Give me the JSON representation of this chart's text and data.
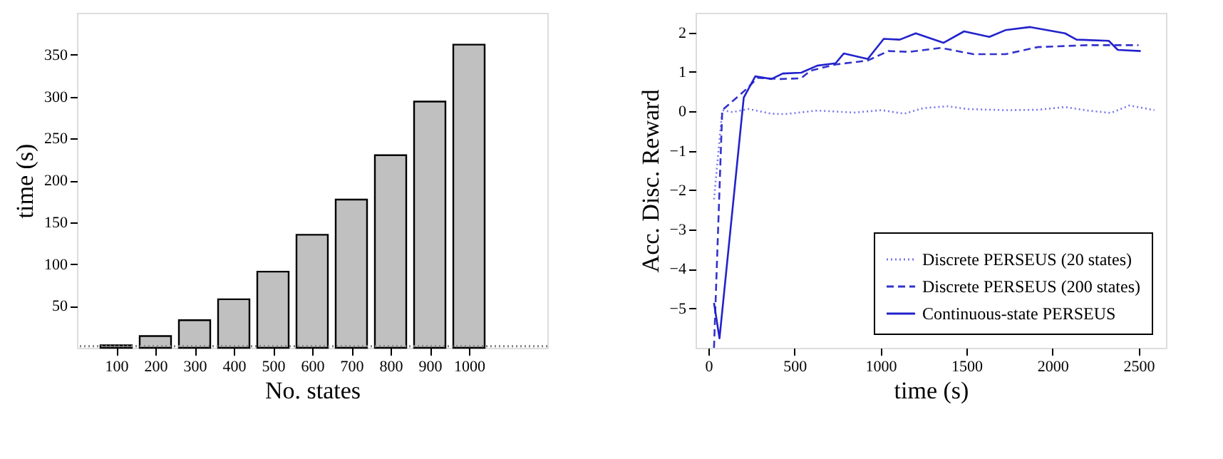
{
  "chart_data": [
    {
      "type": "bar",
      "xlabel": "No. states",
      "ylabel": "time (s)",
      "x": [
        100,
        200,
        300,
        400,
        500,
        600,
        700,
        800,
        900,
        1000
      ],
      "values": [
        3,
        14,
        33,
        58,
        91,
        135,
        177,
        230,
        294,
        362
      ],
      "color": "#c0c0c0",
      "xlim": [
        0,
        1200
      ],
      "xticks": [
        100,
        200,
        300,
        400,
        500,
        600,
        700,
        800,
        900,
        1000
      ],
      "ylim": [
        0,
        400
      ],
      "yticks": [
        50,
        100,
        150,
        200,
        250,
        300,
        350
      ],
      "ref_lines": [
        {
          "axis": "y",
          "value": 2,
          "color": "#808080",
          "line_style": "dotted"
        }
      ],
      "grid": false
    },
    {
      "type": "line",
      "xlabel": "time (s)",
      "ylabel": "Acc. Disc. Reward",
      "xlim": [
        -75,
        2660
      ],
      "xticks": [
        0,
        500,
        1000,
        1500,
        2000,
        2500
      ],
      "ylim": [
        -6,
        2.5
      ],
      "yticks": [
        -5,
        -4,
        -3,
        -2,
        -1,
        0,
        1,
        2
      ],
      "legend": "bottom right",
      "grid": false,
      "marker": "none",
      "series": [
        {
          "name": "Discrete PERSEUS (20 states)",
          "color": "#7777ee",
          "line_style": "dotted",
          "x": [
            32,
            80,
            139,
            232,
            366,
            446,
            632,
            846,
            1006,
            1139,
            1246,
            1393,
            1500,
            1726,
            1913,
            2073,
            2206,
            2340,
            2447,
            2593
          ],
          "values": [
            -2.23,
            0.03,
            -0.02,
            0.06,
            -0.06,
            -0.07,
            0.02,
            -0.03,
            0.03,
            -0.06,
            0.08,
            0.13,
            0.06,
            0.03,
            0.04,
            0.11,
            0.02,
            -0.04,
            0.15,
            0.03
          ]
        },
        {
          "name": "Discrete PERSEUS (200 states)",
          "color": "#3333cc",
          "line_style": "dashed",
          "x": [
            32,
            80,
            219,
            285,
            419,
            539,
            592,
            739,
            926,
            1046,
            1166,
            1353,
            1540,
            1726,
            1913,
            2206,
            2500
          ],
          "values": [
            -6.0,
            0.03,
            0.56,
            0.85,
            0.82,
            0.84,
            1.03,
            1.19,
            1.29,
            1.53,
            1.51,
            1.61,
            1.45,
            1.45,
            1.63,
            1.68,
            1.68
          ]
        },
        {
          "name": "Continuous-state PERSEUS",
          "color": "#2222cc",
          "line_style": "solid",
          "x": [
            32,
            64,
            205,
            272,
            366,
            432,
            539,
            632,
            739,
            787,
            926,
            1019,
            1112,
            1205,
            1366,
            1486,
            1633,
            1726,
            1870,
            2073,
            2140,
            2327,
            2380,
            2513
          ],
          "values": [
            -4.86,
            -5.76,
            0.35,
            0.89,
            0.82,
            0.96,
            0.98,
            1.16,
            1.22,
            1.47,
            1.33,
            1.84,
            1.82,
            1.98,
            1.74,
            2.03,
            1.89,
            2.06,
            2.14,
            1.98,
            1.82,
            1.79,
            1.56,
            1.53
          ]
        }
      ]
    }
  ]
}
